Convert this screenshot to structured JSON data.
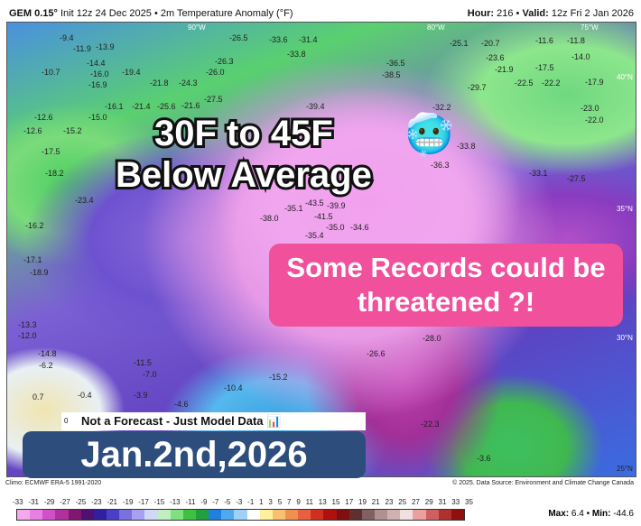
{
  "header": {
    "model": "GEM 0.15°",
    "init": "Init 12z 24 Dec 2025 • 2m Temperature Anomaly (°F)",
    "hour_label": "Hour:",
    "hour": "216",
    "valid_label": "Valid:",
    "valid": "12z Fri 2 Jan 2026"
  },
  "map": {
    "coords": [
      "90°W",
      "80°W",
      "75°W",
      "40°N",
      "35°N",
      "30°N",
      "25°N"
    ],
    "labels": [
      "-9.4",
      "-11.9",
      "-13.9",
      "-14.4",
      "-16.0",
      "-16.9",
      "-10.7",
      "-12.6",
      "-12.6",
      "-15.2",
      "-15.0",
      "-16.1",
      "-21.4",
      "-19.4",
      "-21.8",
      "-24.3",
      "-26.5",
      "-33.6",
      "-31.4",
      "-33.8",
      "-26.3",
      "-26.0",
      "-27.5",
      "-25.6",
      "-21.6",
      "-17.5",
      "-18.2",
      "-23.4",
      "-38.0",
      "-43.5",
      "-39.9",
      "-41.5",
      "-39.4",
      "-36.5",
      "-38.5",
      "-32.2",
      "-36.3",
      "-33.8",
      "-29.7",
      "-25.1",
      "-20.7",
      "-23.6",
      "-21.9",
      "-17.5",
      "-11.6",
      "-11.8",
      "-14.0",
      "-22.5",
      "-22.2",
      "-17.9",
      "-23.0",
      "-22.0",
      "-33.1",
      "-27.5",
      "-35.0",
      "-34.6",
      "-35.1",
      "-35.4",
      "-15.2",
      "-10.4",
      "-11.5",
      "-7.0",
      "-3.9",
      "-4.6",
      "-0.4",
      "0.7",
      "-14.8",
      "-13.3",
      "-12.0",
      "-16.2",
      "-17.1",
      "-18.9",
      "-28.0",
      "-26.6",
      "-22.3",
      "-6.2",
      "-3.6"
    ]
  },
  "overlay": {
    "headline_1": "30F to 45F",
    "headline_2": "Below Average",
    "emoji": "🥶",
    "pink_1": "Some Records could be",
    "pink_2": "threatened ?!",
    "note": "Not a Forecast - Just Model Data 📊",
    "note_zero": "0",
    "date": "Jan.2nd,2026"
  },
  "footer": {
    "climo": "Climo: ECMWF ERA-5 1991-2020",
    "source": "© 2025. Data Source: Environment and Climate Change Canada",
    "max_label": "Max:",
    "max": "6.4",
    "min_label": "Min:",
    "min": "-44.6"
  },
  "colorbar": {
    "ticks": [
      "-33",
      "-31",
      "-29",
      "-27",
      "-25",
      "-23",
      "-21",
      "-19",
      "-17",
      "-15",
      "-13",
      "-11",
      "-9",
      "-7",
      "-5",
      "-3",
      "-1",
      "1",
      "3",
      "5",
      "7",
      "9",
      "11",
      "13",
      "15",
      "17",
      "19",
      "21",
      "23",
      "25",
      "27",
      "29",
      "31",
      "33",
      "35"
    ],
    "colors": [
      "#f4a8ee",
      "#e880e0",
      "#d050c8",
      "#b0309c",
      "#801870",
      "#501070",
      "#3020a0",
      "#4a40c8",
      "#7a70e0",
      "#a8a0f0",
      "#d0d8f8",
      "#c0f0c0",
      "#80e080",
      "#40c040",
      "#20a040",
      "#2080e0",
      "#50a8f0",
      "#a0d0f8",
      "#ffffff",
      "#fff0a0",
      "#f8c070",
      "#f09050",
      "#e86040",
      "#d03020",
      "#b01010",
      "#801010",
      "#603030",
      "#806060",
      "#b09090",
      "#d0b0b0",
      "#f0e0e0",
      "#e8a0a0",
      "#d06060",
      "#b03030",
      "#901010"
    ]
  },
  "colors": {
    "pink_box": "#f0509c",
    "date_box": "#2d4d7c"
  }
}
